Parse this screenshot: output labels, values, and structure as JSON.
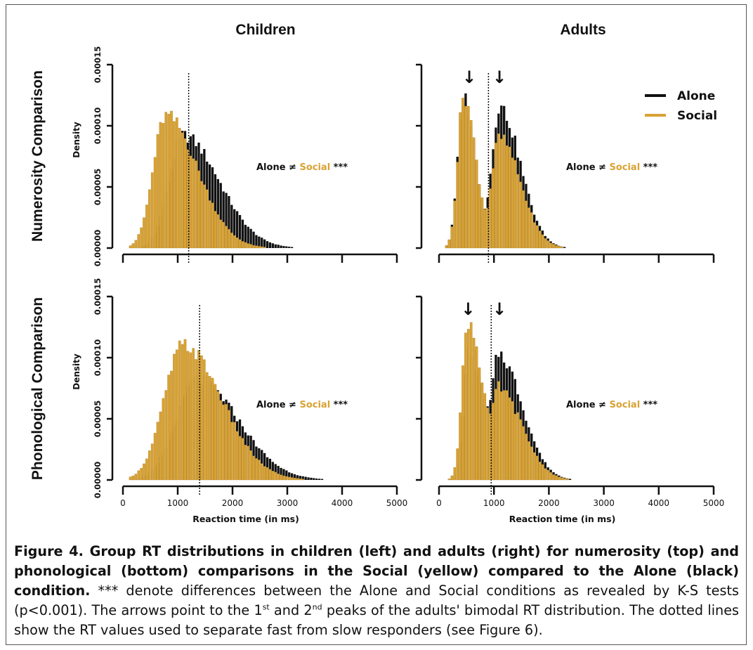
{
  "colors": {
    "alone": "#111111",
    "social": "#d9a233",
    "axis": "#111111"
  },
  "col_titles": [
    "Children",
    "Adults"
  ],
  "row_titles": [
    "Numerosity Comparison",
    "Phonological Comparison"
  ],
  "density_label": "Density",
  "x_label": "Reaction time (in ms)",
  "legend": {
    "alone": "Alone",
    "social": "Social"
  },
  "annotation": {
    "alone": "Alone ≠",
    "social": "Social",
    "stars": "***"
  },
  "arrow_glyph": "↓",
  "chart_data": [
    {
      "type": "histogram",
      "title": "Children",
      "row": "Numerosity Comparison",
      "xlabel": "",
      "ylabel": "Density",
      "xlim": [
        0,
        5000
      ],
      "ylim": [
        0,
        0.00015
      ],
      "xticks": [],
      "yticks": [
        "0.00000",
        "0.00005",
        "0.00010",
        "0.00015"
      ],
      "cutoff": 1200,
      "arrows": [],
      "legend": false,
      "alone": {
        "shape": "skewed",
        "mode": 1100,
        "peak": 9.2e-05,
        "left_sd": 260,
        "right_sd": 650
      },
      "social": {
        "shape": "skewed",
        "mode": 780,
        "peak": 0.000108,
        "left_sd": 230,
        "right_sd": 580
      },
      "annotation": "Alone ≠ Social ***"
    },
    {
      "type": "histogram",
      "title": "Adults",
      "row": "Numerosity Comparison",
      "xlabel": "",
      "ylabel": "",
      "xlim": [
        0,
        5000
      ],
      "ylim": [
        0,
        0.00015
      ],
      "xticks": [],
      "yticks": [],
      "cutoff": 900,
      "arrows": [
        550,
        1100
      ],
      "legend": true,
      "alone": {
        "shape": "bimodal",
        "mode": 450,
        "peak": 0.000123,
        "left_sd": 110,
        "right_sd": 220,
        "mode2": 1100,
        "peak2": 0.000115,
        "right_sd2": 380
      },
      "social": {
        "shape": "bimodal",
        "mode": 450,
        "peak": 0.000125,
        "left_sd": 110,
        "right_sd": 220,
        "mode2": 1100,
        "peak2": 9e-05,
        "right_sd2": 380
      },
      "annotation": "Alone ≠ Social ***"
    },
    {
      "type": "histogram",
      "title": "Children",
      "row": "Phonological Comparison",
      "xlabel": "Reaction time (in ms)",
      "ylabel": "Density",
      "xlim": [
        0,
        5000
      ],
      "ylim": [
        0,
        0.00015
      ],
      "xticks": [
        "0",
        "1000",
        "2000",
        "3000",
        "4000",
        "5000"
      ],
      "yticks": [
        "0.00000",
        "0.00005",
        "0.00010",
        "0.00015"
      ],
      "cutoff": 1400,
      "arrows": [],
      "legend": false,
      "alone": {
        "shape": "skewed",
        "mode": 1350,
        "peak": 8.2e-05,
        "left_sd": 380,
        "right_sd": 750
      },
      "social": {
        "shape": "skewed",
        "mode": 1100,
        "peak": 0.00011,
        "left_sd": 350,
        "right_sd": 700
      },
      "annotation": "Alone ≠ Social ***"
    },
    {
      "type": "histogram",
      "title": "Adults",
      "row": "Phonological Comparison",
      "xlabel": "Reaction time (in ms)",
      "ylabel": "",
      "xlim": [
        0,
        5000
      ],
      "ylim": [
        0,
        0.00015
      ],
      "xticks": [
        "0",
        "1000",
        "2000",
        "3000",
        "4000",
        "5000"
      ],
      "yticks": [],
      "cutoff": 950,
      "arrows": [
        530,
        1100
      ],
      "legend": false,
      "alone": {
        "shape": "bimodal",
        "mode": 560,
        "peak": 0.000105,
        "left_sd": 110,
        "right_sd": 260,
        "mode2": 1100,
        "peak2": 0.0001,
        "right_sd2": 420
      },
      "social": {
        "shape": "bimodal",
        "mode": 530,
        "peak": 0.00013,
        "left_sd": 110,
        "right_sd": 260,
        "mode2": 1100,
        "peak2": 7.2e-05,
        "right_sd2": 420
      },
      "annotation": "Alone ≠ Social ***"
    }
  ],
  "caption": {
    "bold": "Figure 4. Group RT distributions in children (left) and adults (right) for numerosity (top) and phonological (bottom) comparisons in the Social (yellow) compared to the Alone (black) condition.",
    "text1": " *** denote differences between the Alone and Social conditions as revealed by K-S tests (p<0.001). The arrows point to the 1",
    "sup1": "st",
    "text2": " and 2",
    "sup2": "nd",
    "text3": " peaks of the adults' bimodal RT distribution. The dotted lines show the RT values used to separate fast from slow responders (see Figure 6)."
  }
}
